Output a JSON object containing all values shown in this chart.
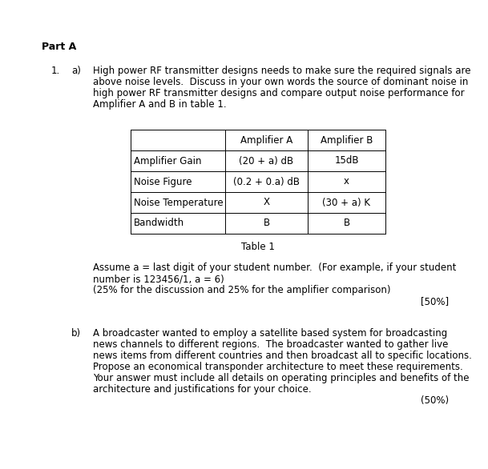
{
  "bg_color": "#ffffff",
  "part_a_label": "Part A",
  "q1_num": "1.",
  "q1a_label": "a)",
  "q1a_text_lines": [
    "High power RF transmitter designs needs to make sure the required signals are",
    "above noise levels.  Discuss in your own words the source of dominant noise in",
    "high power RF transmitter designs and compare output noise performance for",
    "Amplifier A and B in table 1."
  ],
  "table_headers": [
    "",
    "Amplifier A",
    "Amplifier B"
  ],
  "table_rows": [
    [
      "Amplifier Gain",
      "(20 + a) dB",
      "15dB"
    ],
    [
      "Noise Figure",
      "(0.2 + 0.a) dB",
      "x"
    ],
    [
      "Noise Temperature",
      "X",
      "(30 + a) K"
    ],
    [
      "Bandwidth",
      "B",
      "B"
    ]
  ],
  "table_bold_a": [
    [
      0,
      1,
      "(20 + a) dB"
    ],
    [
      1,
      1,
      "(0.2 + 0.a) dB"
    ],
    [
      2,
      2,
      "(30 + a) K"
    ]
  ],
  "table_caption": "Table 1",
  "note_lines": [
    "Assume a = last digit of your student number.  (For example, if your student",
    "number is 123456/1, a = 6)",
    "(25% for the discussion and 25% for the amplifier comparison)"
  ],
  "marks_a": "[50%]",
  "q1b_label": "b)",
  "q1b_text_lines": [
    "A broadcaster wanted to employ a satellite based system for broadcasting",
    "news channels to different regions.  The broadcaster wanted to gather live",
    "news items from different countries and then broadcast all to specific locations.",
    "Propose an economical transponder architecture to meet these requirements.",
    "Your answer must include all details on operating principles and benefits of the",
    "architecture and justifications for your choice."
  ],
  "marks_b": "(50%)",
  "fs_main": 8.5,
  "fs_bold": 8.5,
  "fs_table": 8.5,
  "lh": 14
}
